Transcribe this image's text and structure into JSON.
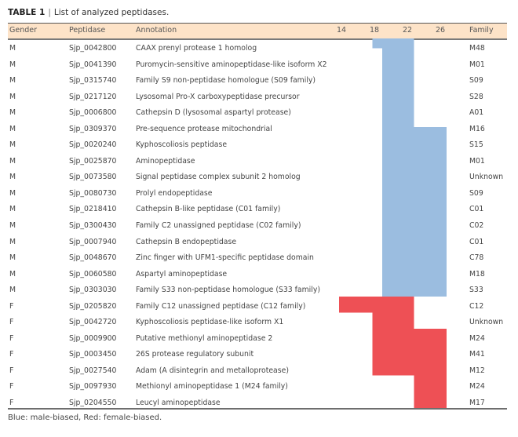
{
  "caption": {
    "label": "TABLE 1",
    "separator": "|",
    "text": "List of analyzed peptidases."
  },
  "header": {
    "gender": "Gender",
    "peptidase": "Peptidase",
    "annotation": "Annotation",
    "t14": "14",
    "t18": "18",
    "t22": "22",
    "t26": "26",
    "family": "Family"
  },
  "colors": {
    "header_bg": "#fde3c8",
    "male_biased": "#9bbde0",
    "female_biased": "#ee5055"
  },
  "rows": [
    {
      "gender": "M",
      "peptidase": "Sjp_0042800",
      "annotation": "CAAX prenyl protease 1 homolog",
      "family": "M48"
    },
    {
      "gender": "M",
      "peptidase": "Sjp_0041390",
      "annotation": "Puromycin-sensitive aminopeptidase-like isoform X2",
      "family": "M01"
    },
    {
      "gender": "M",
      "peptidase": "Sjp_0315740",
      "annotation": "Family S9 non-peptidase homologue (S09 family)",
      "family": "S09"
    },
    {
      "gender": "M",
      "peptidase": "Sjp_0217120",
      "annotation": "Lysosomal Pro-X carboxypeptidase precursor",
      "family": "S28"
    },
    {
      "gender": "M",
      "peptidase": "Sjp_0006800",
      "annotation": "Cathepsin D (lysosomal aspartyl protease)",
      "family": "A01"
    },
    {
      "gender": "M",
      "peptidase": "Sjp_0309370",
      "annotation": "Pre-sequence protease mitochondrial",
      "family": "M16"
    },
    {
      "gender": "M",
      "peptidase": "Sjp_0020240",
      "annotation": "Kyphoscoliosis peptidase",
      "family": "S15"
    },
    {
      "gender": "M",
      "peptidase": "Sjp_0025870",
      "annotation": "Aminopeptidase",
      "family": "M01"
    },
    {
      "gender": "M",
      "peptidase": "Sjp_0073580",
      "annotation": "Signal peptidase complex subunit 2 homolog",
      "family": "Unknown"
    },
    {
      "gender": "M",
      "peptidase": "Sjp_0080730",
      "annotation": "Prolyl endopeptidase",
      "family": "S09"
    },
    {
      "gender": "M",
      "peptidase": "Sjp_0218410",
      "annotation": "Cathepsin B-like peptidase (C01 family)",
      "family": "C01"
    },
    {
      "gender": "M",
      "peptidase": "Sjp_0300430",
      "annotation": "Family C2 unassigned peptidase (C02 family)",
      "family": "C02"
    },
    {
      "gender": "M",
      "peptidase": "Sjp_0007940",
      "annotation": "Cathepsin B endopeptidase",
      "family": "C01"
    },
    {
      "gender": "M",
      "peptidase": "Sjp_0048670",
      "annotation": "Zinc finger with UFM1-specific peptidase domain",
      "family": "C78"
    },
    {
      "gender": "M",
      "peptidase": "Sjp_0060580",
      "annotation": "Aspartyl aminopeptidase",
      "family": "M18"
    },
    {
      "gender": "M",
      "peptidase": "Sjp_0303030",
      "annotation": "Family S33 non-peptidase homologue (S33 family)",
      "family": "S33"
    },
    {
      "gender": "F",
      "peptidase": "Sjp_0205820",
      "annotation": "Family C12 unassigned peptidase (C12 family)",
      "family": "C12"
    },
    {
      "gender": "F",
      "peptidase": "Sjp_0042720",
      "annotation": "Kyphoscoliosis peptidase-like isoform X1",
      "family": "Unknown"
    },
    {
      "gender": "F",
      "peptidase": "Sjp_0009900",
      "annotation": "Putative methionyl aminopeptidase 2",
      "family": "M24"
    },
    {
      "gender": "F",
      "peptidase": "Sjp_0003450",
      "annotation": "26S protease regulatory subunit",
      "family": "M41"
    },
    {
      "gender": "F",
      "peptidase": "Sjp_0027540",
      "annotation": "Adam (A disintegrin and metalloprotease)",
      "family": "M12"
    },
    {
      "gender": "F",
      "peptidase": "Sjp_0097930",
      "annotation": "Methionyl aminopeptidase 1 (M24 family)",
      "family": "M24"
    },
    {
      "gender": "F",
      "peptidase": "Sjp_0204550",
      "annotation": "Leucyl aminopeptidase",
      "family": "M17"
    }
  ],
  "expression_regions": [
    {
      "bias": "male",
      "from_day": 17.5,
      "to_day": 22.6,
      "from_row": 0,
      "to_row": 0.6
    },
    {
      "bias": "male",
      "from_day": 18.7,
      "to_day": 22.6,
      "from_row": 0.6,
      "to_row": 16
    },
    {
      "bias": "male",
      "from_day": 22.6,
      "to_day": 26.6,
      "from_row": 5.5,
      "to_row": 16
    },
    {
      "bias": "female",
      "from_day": 13.4,
      "to_day": 22.6,
      "from_row": 16,
      "to_row": 17
    },
    {
      "bias": "female",
      "from_day": 17.5,
      "to_day": 22.6,
      "from_row": 17,
      "to_row": 20.9
    },
    {
      "bias": "female",
      "from_day": 22.6,
      "to_day": 26.6,
      "from_row": 18,
      "to_row": 23
    }
  ],
  "footnote": "Blue: male-biased, Red: female-biased."
}
